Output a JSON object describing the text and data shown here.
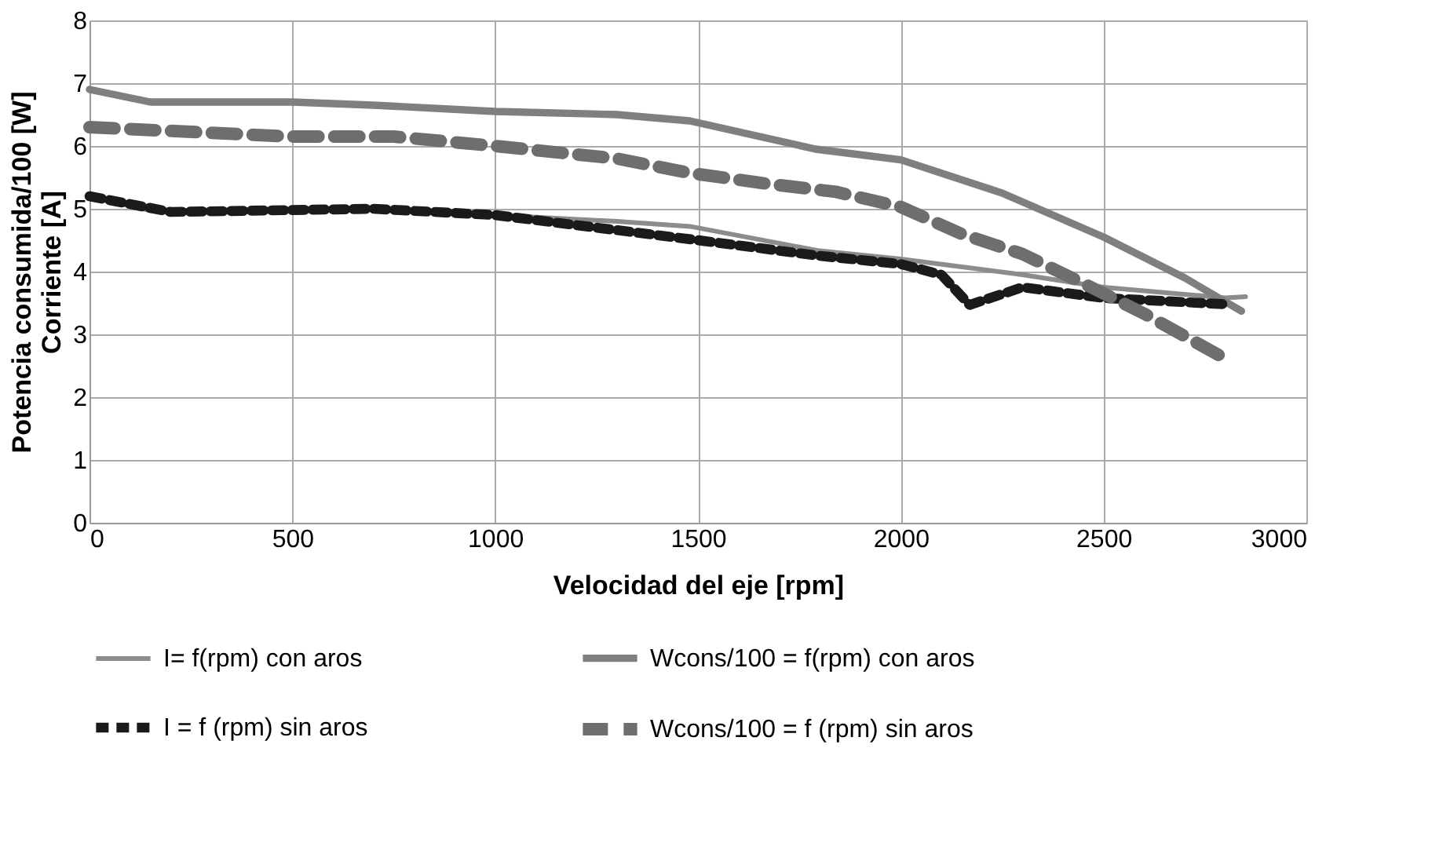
{
  "chart_data": {
    "type": "line",
    "xlabel": "Velocidad del eje [rpm]",
    "ylabel": "Potencia consumida/100 [W]\nCorriente [A]",
    "xlim": [
      0,
      3000
    ],
    "xticks": [
      0,
      500,
      1000,
      1500,
      2000,
      2500,
      3000
    ],
    "ylim": [
      0,
      8
    ],
    "yticks": [
      0,
      1,
      2,
      3,
      4,
      5,
      6,
      7,
      8
    ],
    "grid": true,
    "legend": "bottom",
    "series": [
      {
        "name": "I= f(rpm) con aros",
        "color": "#8c8c8c",
        "line_style": "solid",
        "x": [
          0,
          150,
          400,
          700,
          1000,
          1300,
          1480,
          1800,
          2000,
          2300,
          2500,
          2800,
          2850
        ],
        "values": [
          5.2,
          4.97,
          4.98,
          5.0,
          4.9,
          4.8,
          4.72,
          4.33,
          4.2,
          3.95,
          3.75,
          3.58,
          3.6
        ]
      },
      {
        "name": "Wcons/100 = f(rpm) con aros",
        "color": "#7f7f7f",
        "line_style": "solid",
        "x": [
          0,
          150,
          500,
          700,
          1000,
          1300,
          1480,
          1790,
          2000,
          2250,
          2500,
          2700,
          2840
        ],
        "values": [
          6.9,
          6.7,
          6.7,
          6.65,
          6.55,
          6.5,
          6.4,
          5.95,
          5.78,
          5.25,
          4.55,
          3.9,
          3.37
        ]
      },
      {
        "name": "I = f (rpm) sin aros",
        "color": "#1a1a1a",
        "line_style": "dashed",
        "x": [
          0,
          200,
          700,
          1000,
          1500,
          1800,
          2000,
          2100,
          2170,
          2300,
          2500,
          2800
        ],
        "values": [
          5.2,
          4.95,
          5.0,
          4.9,
          4.5,
          4.25,
          4.12,
          3.95,
          3.47,
          3.75,
          3.58,
          3.48
        ]
      },
      {
        "name": "Wcons/100 = f (rpm) sin aros",
        "color": "#6e6e6e",
        "line_style": "dashed",
        "x": [
          0,
          500,
          750,
          1000,
          1300,
          1480,
          1670,
          1840,
          2000,
          2150,
          2300,
          2460,
          2600,
          2790
        ],
        "values": [
          6.3,
          6.15,
          6.15,
          6.0,
          5.8,
          5.57,
          5.4,
          5.27,
          5.03,
          4.6,
          4.28,
          3.78,
          3.33,
          2.65
        ]
      }
    ]
  }
}
